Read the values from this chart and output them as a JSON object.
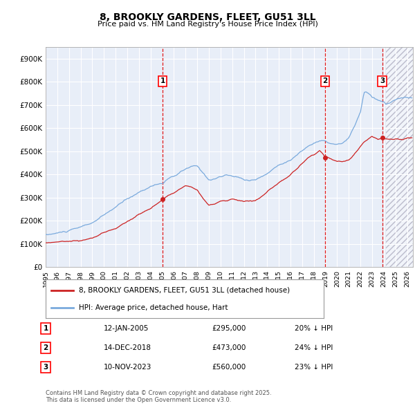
{
  "title": "8, BROOKLY GARDENS, FLEET, GU51 3LL",
  "subtitle": "Price paid vs. HM Land Registry's House Price Index (HPI)",
  "ylim": [
    0,
    950000
  ],
  "yticks": [
    0,
    100000,
    200000,
    300000,
    400000,
    500000,
    600000,
    700000,
    800000,
    900000
  ],
  "ytick_labels": [
    "£0",
    "£100K",
    "£200K",
    "£300K",
    "£400K",
    "£500K",
    "£600K",
    "£700K",
    "£800K",
    "£900K"
  ],
  "xlim_start": 1995.0,
  "xlim_end": 2026.5,
  "hpi_color": "#7aaadd",
  "price_color": "#cc2222",
  "purchase_dates": [
    2005.04,
    2018.96,
    2023.87
  ],
  "purchase_prices": [
    295000,
    473000,
    560000
  ],
  "purchase_labels": [
    "1",
    "2",
    "3"
  ],
  "legend_label_red": "8, BROOKLY GARDENS, FLEET, GU51 3LL (detached house)",
  "legend_label_blue": "HPI: Average price, detached house, Hart",
  "table_data": [
    [
      "1",
      "12-JAN-2005",
      "£295,000",
      "20% ↓ HPI"
    ],
    [
      "2",
      "14-DEC-2018",
      "£473,000",
      "24% ↓ HPI"
    ],
    [
      "3",
      "10-NOV-2023",
      "£560,000",
      "23% ↓ HPI"
    ]
  ],
  "footer": "Contains HM Land Registry data © Crown copyright and database right 2025.\nThis data is licensed under the Open Government Licence v3.0.",
  "background_color": "#e8eef8",
  "grid_color": "#ffffff",
  "hatch_start": 2024.17
}
